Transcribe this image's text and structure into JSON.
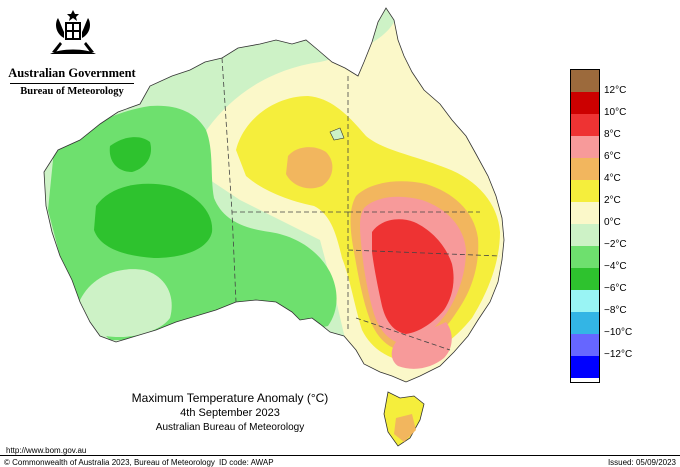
{
  "branding": {
    "government": "Australian Government",
    "agency": "Bureau of Meteorology"
  },
  "map": {
    "title": "Maximum Temperature Anomaly (°C)",
    "date": "4th September 2023",
    "source": "Australian Bureau of Meteorology",
    "variable": "maximum temperature anomaly",
    "units": "°C"
  },
  "legend": {
    "items": [
      {
        "label": "",
        "color": "#9c6a3c"
      },
      {
        "label": "12°C",
        "color": "#cc0000"
      },
      {
        "label": "10°C",
        "color": "#ee3333"
      },
      {
        "label": "8°C",
        "color": "#f79a9a"
      },
      {
        "label": "6°C",
        "color": "#f2b65e"
      },
      {
        "label": "4°C",
        "color": "#f5ee3c"
      },
      {
        "label": "2°C",
        "color": "#fbf8c9"
      },
      {
        "label": "0°C",
        "color": "#cdf2c6"
      },
      {
        "label": "−2°C",
        "color": "#6ee06e"
      },
      {
        "label": "−4°C",
        "color": "#2ec22e"
      },
      {
        "label": "−6°C",
        "color": "#99f4f4"
      },
      {
        "label": "−8°C",
        "color": "#33b5e5"
      },
      {
        "label": "−10°C",
        "color": "#6666ff"
      },
      {
        "label": "−12°C",
        "color": "#0000ff"
      }
    ]
  },
  "footer": {
    "url": "http://www.bom.gov.au",
    "copyright": "© Commonwealth of Australia 2023, Bureau of Meteorology",
    "id_code": "ID code: AWAP",
    "issued": "Issued: 05/09/2023"
  }
}
